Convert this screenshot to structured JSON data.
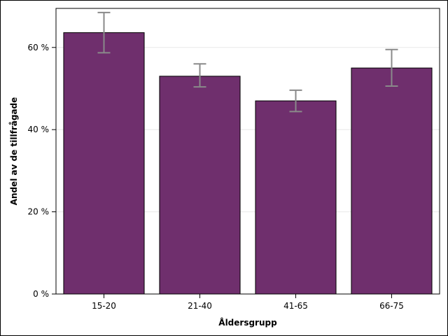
{
  "chart_data": {
    "type": "bar",
    "title": "",
    "xlabel": "Åldersgrupp",
    "ylabel": "Andel av de tillfrågade",
    "categories": [
      "15-20",
      "21-40",
      "41-65",
      "66-75"
    ],
    "values": [
      63.6,
      53.0,
      47.0,
      55.0
    ],
    "error_low": [
      58.7,
      50.4,
      44.4,
      50.6
    ],
    "error_high": [
      68.5,
      56.0,
      49.6,
      59.5
    ],
    "ylim": [
      0,
      69.5
    ],
    "yticks": [
      0,
      20,
      40,
      60
    ],
    "ytick_labels": [
      "0 %",
      "20 %",
      "40 %",
      "60 %"
    ],
    "grid": true,
    "legend": "none",
    "colors": {
      "bar_fill": "#6f2f6d",
      "bar_edge": "#000000",
      "error_bar": "#8a8a8a",
      "grid": "#e8e8e8"
    }
  }
}
